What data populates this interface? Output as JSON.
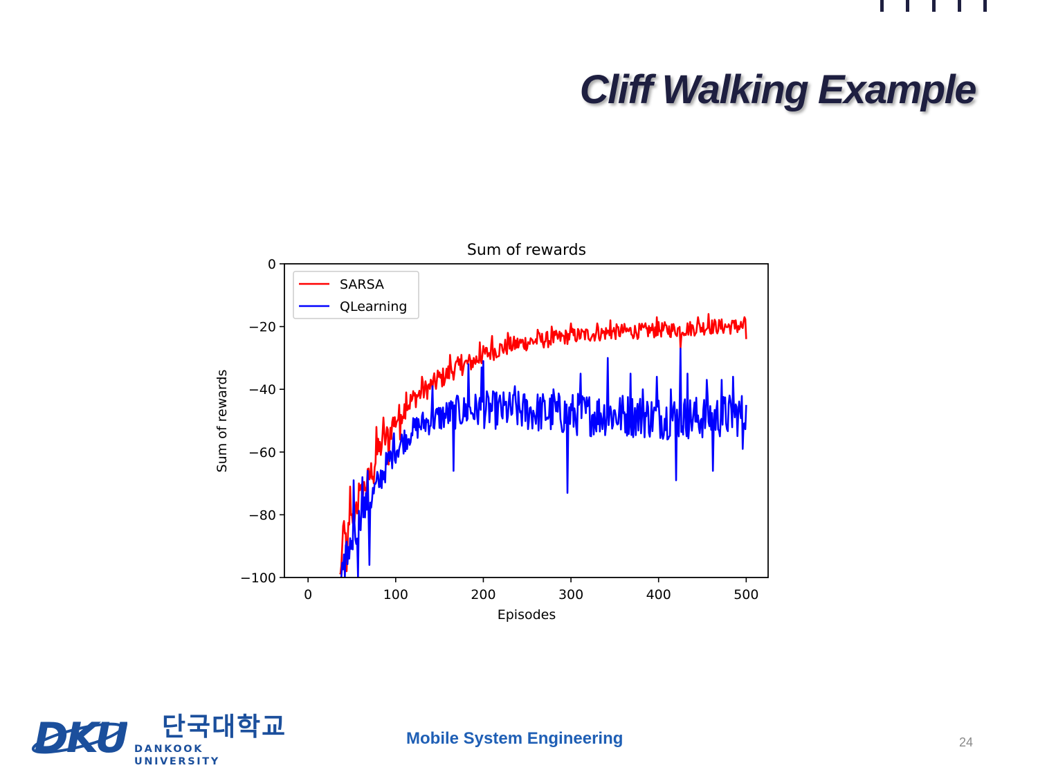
{
  "slide": {
    "title": "Cliff Walking Example",
    "footer_text": "Mobile System Engineering",
    "page_number": "24",
    "logo_korean": "단국대학교",
    "logo_english": "DANKOOK UNIVERSITY",
    "logo_mark_text": "DKU",
    "title_color": "#1e1f40",
    "accent_color": "#1f5fb5"
  },
  "chart_data": {
    "type": "line",
    "title": "Sum of rewards",
    "xlabel": "Episodes",
    "ylabel": "Sum of rewards",
    "xlim": [
      -27,
      525
    ],
    "ylim": [
      -100,
      0
    ],
    "xticks": [
      0,
      100,
      200,
      300,
      400,
      500
    ],
    "xtick_labels": [
      "0",
      "100",
      "200",
      "300",
      "400",
      "500"
    ],
    "yticks": [
      0,
      -20,
      -40,
      -60,
      -80,
      -100
    ],
    "ytick_labels": [
      "0",
      "−20",
      "−40",
      "−60",
      "−80",
      "−100"
    ],
    "grid": false,
    "legend_position": "upper-left",
    "x_start": 36,
    "x_end": 500,
    "series": [
      {
        "name": "SARSA",
        "color": "#ff0000",
        "anchors": [
          [
            36,
            -100
          ],
          [
            40,
            -88
          ],
          [
            45,
            -87
          ],
          [
            50,
            -82
          ],
          [
            55,
            -78
          ],
          [
            60,
            -74
          ],
          [
            70,
            -68
          ],
          [
            80,
            -60
          ],
          [
            90,
            -55
          ],
          [
            100,
            -50
          ],
          [
            110,
            -46
          ],
          [
            120,
            -43
          ],
          [
            130,
            -41
          ],
          [
            140,
            -39
          ],
          [
            150,
            -37
          ],
          [
            160,
            -35
          ],
          [
            170,
            -33
          ],
          [
            180,
            -32
          ],
          [
            190,
            -31
          ],
          [
            200,
            -29
          ],
          [
            220,
            -27
          ],
          [
            240,
            -25.5
          ],
          [
            260,
            -24.5
          ],
          [
            280,
            -24
          ],
          [
            300,
            -23
          ],
          [
            320,
            -22.5
          ],
          [
            340,
            -22
          ],
          [
            360,
            -21.5
          ],
          [
            380,
            -21.5
          ],
          [
            400,
            -21
          ],
          [
            420,
            -21
          ],
          [
            440,
            -20.5
          ],
          [
            460,
            -20
          ],
          [
            480,
            -20
          ],
          [
            500,
            -20
          ]
        ],
        "noise": [
          [
            36,
            4.5
          ],
          [
            80,
            4.5
          ],
          [
            120,
            3.5
          ],
          [
            200,
            3
          ],
          [
            300,
            2.5
          ],
          [
            500,
            2.5
          ]
        ],
        "spikes": [
          [
            38,
            -96
          ],
          [
            41,
            -82
          ],
          [
            44,
            -98
          ],
          [
            48,
            -71
          ],
          [
            55,
            -76
          ],
          [
            58,
            -70
          ],
          [
            75,
            -70
          ],
          [
            78,
            -52
          ],
          [
            86,
            -49
          ],
          [
            92,
            -64
          ],
          [
            97,
            -49
          ],
          [
            105,
            -56
          ],
          [
            112,
            -41
          ],
          [
            130,
            -36
          ],
          [
            148,
            -34
          ],
          [
            162,
            -29
          ],
          [
            175,
            -29
          ],
          [
            196,
            -25
          ],
          [
            210,
            -23
          ],
          [
            228,
            -22
          ],
          [
            262,
            -21
          ],
          [
            278,
            -20
          ],
          [
            300,
            -19
          ],
          [
            330,
            -19
          ],
          [
            345,
            -18
          ],
          [
            398,
            -17
          ],
          [
            425,
            -27
          ],
          [
            445,
            -17
          ],
          [
            457,
            -16
          ],
          [
            488,
            -18
          ],
          [
            498,
            -17
          ],
          [
            500,
            -24
          ]
        ]
      },
      {
        "name": "QLearning",
        "color": "#0000ff",
        "anchors": [
          [
            36,
            -100
          ],
          [
            40,
            -98
          ],
          [
            45,
            -92
          ],
          [
            50,
            -88
          ],
          [
            55,
            -85
          ],
          [
            60,
            -80
          ],
          [
            70,
            -76
          ],
          [
            80,
            -70
          ],
          [
            90,
            -64
          ],
          [
            100,
            -59
          ],
          [
            110,
            -56
          ],
          [
            120,
            -53
          ],
          [
            130,
            -51
          ],
          [
            140,
            -50
          ],
          [
            150,
            -49
          ],
          [
            160,
            -48
          ],
          [
            180,
            -47
          ],
          [
            200,
            -46.5
          ],
          [
            250,
            -47
          ],
          [
            300,
            -48
          ],
          [
            350,
            -48
          ],
          [
            400,
            -49
          ],
          [
            450,
            -49
          ],
          [
            500,
            -48
          ]
        ],
        "noise": [
          [
            36,
            5
          ],
          [
            80,
            5
          ],
          [
            120,
            4
          ],
          [
            200,
            6
          ],
          [
            300,
            7
          ],
          [
            500,
            7
          ]
        ],
        "spikes": [
          [
            42,
            -100
          ],
          [
            47,
            -94
          ],
          [
            52,
            -69
          ],
          [
            57,
            -100
          ],
          [
            62,
            -68
          ],
          [
            68,
            -66
          ],
          [
            70,
            -96
          ],
          [
            82,
            -71
          ],
          [
            98,
            -54
          ],
          [
            118,
            -54
          ],
          [
            142,
            -39
          ],
          [
            166,
            -66
          ],
          [
            170,
            -42
          ],
          [
            183,
            -32
          ],
          [
            198,
            -33
          ],
          [
            200,
            -31
          ],
          [
            236,
            -39
          ],
          [
            280,
            -40
          ],
          [
            296,
            -73
          ],
          [
            311,
            -35
          ],
          [
            342,
            -30
          ],
          [
            368,
            -35
          ],
          [
            382,
            -40
          ],
          [
            398,
            -36
          ],
          [
            414,
            -40
          ],
          [
            420,
            -69
          ],
          [
            425,
            -27
          ],
          [
            433,
            -35
          ],
          [
            455,
            -37
          ],
          [
            462,
            -66
          ],
          [
            472,
            -37
          ],
          [
            485,
            -36
          ],
          [
            496,
            -59
          ],
          [
            500,
            -45
          ]
        ]
      }
    ]
  }
}
